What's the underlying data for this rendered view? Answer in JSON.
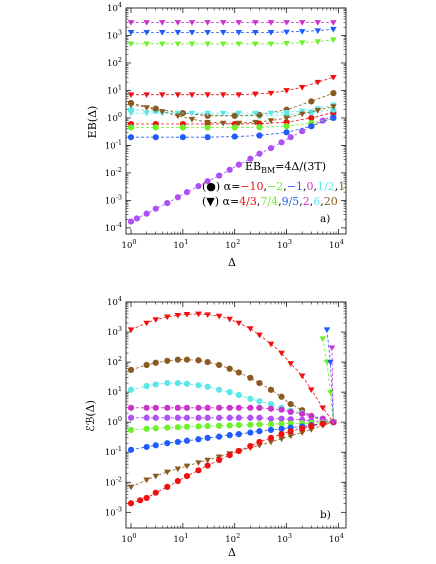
{
  "colors": {
    "purple": "#b04ff5",
    "blue": "#1f5cff",
    "green": "#6cf12a",
    "red": "#f01010",
    "cyan": "#5de8e8",
    "brown": "#8b5a1e",
    "magenta": "#cc33cc",
    "black": "#000000"
  },
  "chart_data": [
    {
      "type": "scatter",
      "panel_label": "a)",
      "xlabel": "Δ",
      "ylabel": "EB(Δ)",
      "xscale": "log",
      "yscale": "log",
      "xlim": [
        0.8,
        14000
      ],
      "ylim": [
        6e-05,
        10000
      ],
      "xticks": [
        {
          "label": "10",
          "sup": "0"
        },
        {
          "label": "10",
          "sup": "1"
        },
        {
          "label": "10",
          "sup": "2"
        },
        {
          "label": "10",
          "sup": "3"
        },
        {
          "label": "10",
          "sup": "4"
        }
      ],
      "yticks": [
        {
          "label": "10",
          "sup": "-4"
        },
        {
          "label": "10",
          "sup": "-3"
        },
        {
          "label": "10",
          "sup": "-2"
        },
        {
          "label": "10",
          "sup": "-1"
        },
        {
          "label": "10",
          "sup": "0"
        },
        {
          "label": "10",
          "sup": "1"
        },
        {
          "label": "10",
          "sup": "2"
        },
        {
          "label": "10",
          "sup": "3"
        },
        {
          "label": "10",
          "sup": "4"
        }
      ],
      "annotation": {
        "text": "EB",
        "sub": "BM",
        "rest": "=4Δ/(3T)"
      },
      "legend": {
        "circle_row_prefix": "(●)  α=",
        "circle_values": [
          {
            "text": "−10",
            "color": "red"
          },
          {
            "text": "−2",
            "color": "green"
          },
          {
            "text": "−1",
            "color": "blue"
          },
          {
            "text": "0",
            "color": "magenta"
          },
          {
            "text": "1/2",
            "color": "cyan"
          },
          {
            "text": "1",
            "color": "brown"
          }
        ],
        "triangle_row_prefix": "(▼)  α=",
        "triangle_values": [
          {
            "text": "4/3",
            "color": "red"
          },
          {
            "text": "7/4",
            "color": "green"
          },
          {
            "text": "9/5",
            "color": "blue"
          },
          {
            "text": "2",
            "color": "magenta"
          },
          {
            "text": "6",
            "color": "cyan"
          },
          {
            "text": "20",
            "color": "brown"
          }
        ]
      },
      "series": [
        {
          "marker": "circle",
          "color": "purple",
          "x": [
            1,
            1.3,
            2,
            3,
            5,
            8,
            12,
            20,
            30,
            50,
            80,
            120,
            200,
            300,
            500,
            800,
            1200,
            2000,
            3000,
            5000,
            8000
          ],
          "y": [
            0.00017,
            0.00022,
            0.00033,
            0.0005,
            0.0008,
            0.0013,
            0.002,
            0.0033,
            0.005,
            0.008,
            0.013,
            0.02,
            0.033,
            0.05,
            0.08,
            0.13,
            0.2,
            0.33,
            0.5,
            0.8,
            1.3
          ]
        },
        {
          "marker": "circle",
          "color": "red",
          "x": [
            1,
            3,
            10,
            30,
            100,
            300,
            1000,
            3000,
            8000
          ],
          "y": [
            0.6,
            0.6,
            0.6,
            0.6,
            0.6,
            0.62,
            0.7,
            1.0,
            1.6
          ]
        },
        {
          "marker": "circle",
          "color": "green",
          "x": [
            1,
            3,
            10,
            30,
            100,
            300,
            1000,
            3000,
            8000
          ],
          "y": [
            0.45,
            0.45,
            0.45,
            0.45,
            0.45,
            0.46,
            0.5,
            0.65,
            1.0
          ]
        },
        {
          "marker": "circle",
          "color": "blue",
          "x": [
            1,
            3,
            10,
            30,
            100,
            300,
            1000,
            3000,
            8000
          ],
          "y": [
            0.2,
            0.2,
            0.2,
            0.2,
            0.21,
            0.23,
            0.3,
            0.5,
            1.0
          ]
        },
        {
          "marker": "circle",
          "color": "cyan",
          "x": [
            1,
            3,
            10,
            30,
            100,
            300,
            1000,
            3000,
            8000
          ],
          "y": [
            2.0,
            1.8,
            1.5,
            1.3,
            1.2,
            1.2,
            1.3,
            1.6,
            2.0
          ]
        },
        {
          "marker": "circle",
          "color": "brown",
          "x": [
            1,
            3,
            10,
            30,
            100,
            300,
            1000,
            3000,
            8000
          ],
          "y": [
            3.5,
            2.2,
            1.5,
            1.2,
            1.2,
            1.3,
            2.0,
            4.0,
            8.0
          ]
        },
        {
          "marker": "triangle",
          "color": "magenta",
          "x": [
            1,
            2,
            4,
            8,
            15,
            30,
            60,
            120,
            250,
            500,
            1000,
            2000,
            4000,
            8000
          ],
          "y": [
            3000,
            3000,
            3000,
            3000,
            3000,
            3000,
            3000,
            3000,
            3000,
            3000,
            3000,
            3000,
            3000,
            3000
          ]
        },
        {
          "marker": "triangle",
          "color": "blue",
          "x": [
            1,
            2,
            4,
            8,
            15,
            30,
            60,
            120,
            250,
            500,
            1000,
            2000,
            4000,
            8000
          ],
          "y": [
            1300,
            1300,
            1300,
            1300,
            1300,
            1300,
            1300,
            1300,
            1300,
            1300,
            1350,
            1400,
            1500,
            1700
          ]
        },
        {
          "marker": "triangle",
          "color": "green",
          "x": [
            1,
            2,
            4,
            8,
            15,
            30,
            60,
            120,
            250,
            500,
            1000,
            2000,
            4000,
            8000
          ],
          "y": [
            500,
            500,
            500,
            500,
            500,
            500,
            500,
            500,
            500,
            500,
            520,
            550,
            600,
            700
          ]
        },
        {
          "marker": "triangle",
          "color": "red",
          "x": [
            1,
            2,
            4,
            8,
            15,
            30,
            60,
            120,
            250,
            500,
            1000,
            2000,
            4000,
            8000
          ],
          "y": [
            7,
            7,
            7,
            7,
            7,
            7,
            7,
            7,
            7.5,
            8,
            10,
            13,
            20,
            30
          ]
        },
        {
          "marker": "triangle",
          "color": "cyan",
          "x": [
            1,
            2,
            4,
            8,
            15,
            30,
            60,
            120,
            250,
            500,
            1000,
            2000,
            4000,
            8000
          ],
          "y": [
            1.5,
            1.5,
            1.5,
            1.5,
            1.5,
            1.5,
            1.5,
            1.5,
            1.5,
            1.5,
            1.6,
            1.8,
            2.2,
            3.0
          ]
        },
        {
          "marker": "triangle",
          "color": "brown",
          "x": [
            1,
            2,
            4,
            8,
            15,
            30,
            60,
            120,
            250,
            500,
            1000,
            2000,
            4000,
            8000
          ],
          "y": [
            3.0,
            2.4,
            1.7,
            1.2,
            0.9,
            0.7,
            0.65,
            0.65,
            0.7,
            0.8,
            1.0,
            1.4,
            1.9,
            2.6
          ]
        }
      ]
    },
    {
      "type": "scatter",
      "panel_label": "b)",
      "xlabel": "Δ",
      "ylabel": "ℰℬ(Δ)",
      "xscale": "log",
      "yscale": "log",
      "xlim": [
        0.8,
        14000
      ],
      "ylim": [
        0.0003,
        10000
      ],
      "xticks": [
        {
          "label": "10",
          "sup": "0"
        },
        {
          "label": "10",
          "sup": "1"
        },
        {
          "label": "10",
          "sup": "2"
        },
        {
          "label": "10",
          "sup": "3"
        },
        {
          "label": "10",
          "sup": "4"
        }
      ],
      "yticks": [
        {
          "label": "10",
          "sup": "-3"
        },
        {
          "label": "10",
          "sup": "-2"
        },
        {
          "label": "10",
          "sup": "-1"
        },
        {
          "label": "10",
          "sup": "0"
        },
        {
          "label": "10",
          "sup": "1"
        },
        {
          "label": "10",
          "sup": "2"
        },
        {
          "label": "10",
          "sup": "3"
        },
        {
          "label": "10",
          "sup": "4"
        }
      ],
      "series": [
        {
          "marker": "triangle",
          "color": "red",
          "x": [
            1,
            2,
            3,
            5,
            8,
            12,
            20,
            30,
            50,
            80,
            120,
            200,
            300,
            500,
            800,
            1200,
            2000,
            3000,
            5000,
            8000
          ],
          "y": [
            1200,
            2000,
            2600,
            3200,
            3600,
            3900,
            4000,
            3800,
            3400,
            2700,
            2000,
            1300,
            800,
            400,
            200,
            90,
            35,
            12,
            3,
            1
          ]
        },
        {
          "marker": "circle",
          "color": "brown",
          "x": [
            1,
            2,
            3,
            5,
            8,
            12,
            20,
            30,
            50,
            80,
            120,
            200,
            300,
            500,
            800,
            1200,
            2000,
            3000,
            5000,
            8000
          ],
          "y": [
            55,
            80,
            95,
            110,
            120,
            120,
            115,
            100,
            80,
            60,
            45,
            30,
            20,
            12,
            7,
            4,
            2.5,
            1.6,
            1.1,
            1.0
          ]
        },
        {
          "marker": "circle",
          "color": "cyan",
          "x": [
            1,
            2,
            3,
            5,
            8,
            12,
            20,
            30,
            50,
            80,
            120,
            200,
            300,
            500,
            800,
            1200,
            2000,
            3000,
            5000,
            8000
          ],
          "y": [
            12,
            16,
            18,
            20,
            20,
            19,
            17,
            15,
            12,
            10,
            8,
            6,
            5,
            4,
            3,
            2.4,
            2.0,
            1.6,
            1.3,
            1.0
          ]
        },
        {
          "marker": "circle",
          "color": "magenta",
          "x": [
            1,
            2,
            3,
            5,
            8,
            12,
            20,
            30,
            50,
            80,
            120,
            200,
            300,
            500,
            800,
            1200,
            2000,
            3000,
            5000,
            8000
          ],
          "y": [
            3,
            3,
            3,
            3,
            3,
            3,
            3,
            3,
            3,
            3,
            3,
            3,
            3,
            2.8,
            2.6,
            2.2,
            1.9,
            1.6,
            1.3,
            1.0
          ]
        },
        {
          "marker": "circle",
          "color": "purple",
          "x": [
            1,
            2,
            3,
            5,
            8,
            12,
            20,
            30,
            50,
            80,
            120,
            200,
            300,
            500,
            800,
            1200,
            2000,
            3000,
            5000,
            8000
          ],
          "y": [
            1.4,
            1.4,
            1.4,
            1.4,
            1.4,
            1.4,
            1.4,
            1.4,
            1.4,
            1.4,
            1.4,
            1.4,
            1.4,
            1.3,
            1.3,
            1.25,
            1.2,
            1.1,
            1.05,
            1.0
          ]
        },
        {
          "marker": "circle",
          "color": "green",
          "x": [
            1,
            2,
            3,
            5,
            8,
            12,
            20,
            30,
            50,
            80,
            120,
            200,
            300,
            500,
            800,
            1200,
            2000,
            3000,
            5000,
            8000
          ],
          "y": [
            0.55,
            0.6,
            0.63,
            0.66,
            0.68,
            0.7,
            0.72,
            0.74,
            0.76,
            0.78,
            0.8,
            0.82,
            0.84,
            0.86,
            0.88,
            0.9,
            0.92,
            0.94,
            0.97,
            1.0
          ]
        },
        {
          "marker": "circle",
          "color": "blue",
          "x": [
            1,
            2,
            3,
            5,
            8,
            12,
            20,
            30,
            50,
            80,
            120,
            200,
            300,
            500,
            800,
            1200,
            2000,
            3000,
            5000,
            8000
          ],
          "y": [
            0.12,
            0.15,
            0.17,
            0.2,
            0.22,
            0.24,
            0.27,
            0.3,
            0.33,
            0.37,
            0.4,
            0.45,
            0.5,
            0.55,
            0.6,
            0.66,
            0.72,
            0.8,
            0.9,
            1.0
          ]
        },
        {
          "marker": "triangle",
          "color": "brown",
          "x": [
            1,
            2,
            3,
            5,
            8,
            12,
            20,
            30,
            50,
            80,
            120,
            200,
            300,
            500,
            800,
            1200,
            2000,
            3000,
            5000,
            8000
          ],
          "y": [
            0.007,
            0.012,
            0.016,
            0.022,
            0.028,
            0.035,
            0.045,
            0.055,
            0.07,
            0.09,
            0.11,
            0.14,
            0.17,
            0.22,
            0.28,
            0.35,
            0.45,
            0.58,
            0.78,
            1.0
          ]
        },
        {
          "marker": "circle",
          "color": "red",
          "x": [
            1,
            1.5,
            2,
            3,
            5,
            8,
            12,
            20,
            30,
            50,
            80,
            120,
            200,
            300,
            500,
            800,
            1200,
            2000,
            3000,
            5000,
            8000
          ],
          "y": [
            0.002,
            0.0025,
            0.003,
            0.0045,
            0.007,
            0.011,
            0.016,
            0.025,
            0.036,
            0.055,
            0.08,
            0.11,
            0.16,
            0.22,
            0.3,
            0.4,
            0.5,
            0.62,
            0.75,
            0.88,
            1.0
          ]
        },
        {
          "marker": "triangle",
          "color": "green",
          "x": [
            5000,
            6000,
            7000,
            8000
          ],
          "y": [
            600,
            100,
            10,
            1
          ]
        },
        {
          "marker": "triangle",
          "color": "blue",
          "x": [
            6000,
            7000,
            8000
          ],
          "y": [
            1200,
            100,
            1
          ]
        },
        {
          "marker": "triangle",
          "color": "magenta",
          "x": [
            7500,
            8000
          ],
          "y": [
            300,
            1
          ]
        }
      ]
    }
  ]
}
